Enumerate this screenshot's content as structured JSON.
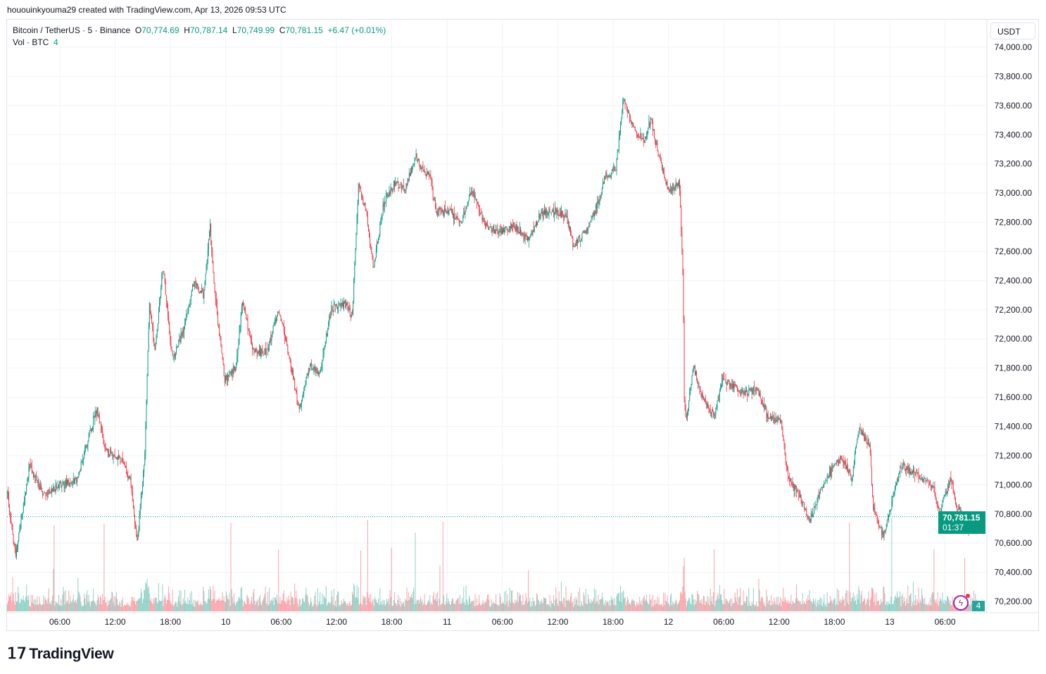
{
  "credit": "hououinkyouma29 created with TradingView.com, Apr 13, 2026 09:53 UTC",
  "legend": {
    "symbol": "Bitcoin / TetherUS · 5 · Binance",
    "o_label": "O",
    "o": "70,774.69",
    "h_label": "H",
    "h": "70,787.14",
    "l_label": "L",
    "l": "70,749.99",
    "c_label": "C",
    "c": "70,781.15",
    "change": "+6.47 (+0.01%)",
    "vol_label": "Vol · BTC",
    "vol": "4"
  },
  "currency": "USDT",
  "last_price": "70,781.15",
  "countdown": "01:37",
  "last_volume": "4",
  "logo": "TradingView",
  "colors": {
    "up": "#089981",
    "down": "#F23645"
  },
  "chart_data": {
    "type": "candlestick",
    "interval": "5m",
    "ylim": [
      70100,
      74100
    ],
    "y_ticks": [
      "74,000.00",
      "73,800.00",
      "73,600.00",
      "73,400.00",
      "73,200.00",
      "73,000.00",
      "72,800.00",
      "72,600.00",
      "72,400.00",
      "72,200.00",
      "72,000.00",
      "71,800.00",
      "71,600.00",
      "71,400.00",
      "71,200.00",
      "71,000.00",
      "70,800.00",
      "70,600.00",
      "70,400.00",
      "70,200.00"
    ],
    "x_range_hours_from_apr9": [
      0.3,
      105.8
    ],
    "x_ticks": [
      {
        "h": 6,
        "label": "06:00"
      },
      {
        "h": 12,
        "label": "12:00"
      },
      {
        "h": 18,
        "label": "18:00"
      },
      {
        "h": 24,
        "label": "10"
      },
      {
        "h": 30,
        "label": "06:00"
      },
      {
        "h": 36,
        "label": "12:00"
      },
      {
        "h": 42,
        "label": "18:00"
      },
      {
        "h": 48,
        "label": "11"
      },
      {
        "h": 54,
        "label": "06:00"
      },
      {
        "h": 60,
        "label": "12:00"
      },
      {
        "h": 66,
        "label": "18:00"
      },
      {
        "h": 72,
        "label": "12"
      },
      {
        "h": 78,
        "label": "06:00"
      },
      {
        "h": 84,
        "label": "12:00"
      },
      {
        "h": 90,
        "label": "18:00"
      },
      {
        "h": 96,
        "label": "13"
      },
      {
        "h": 102,
        "label": "06:00"
      }
    ],
    "price_path": [
      [
        0.3,
        70943
      ],
      [
        1.2,
        70509
      ],
      [
        2.7,
        71136
      ],
      [
        4.1,
        70943
      ],
      [
        6.0,
        70992
      ],
      [
        7.9,
        71040
      ],
      [
        8.7,
        71233
      ],
      [
        10.0,
        71523
      ],
      [
        11.0,
        71233
      ],
      [
        12.5,
        71185
      ],
      [
        13.6,
        71040
      ],
      [
        14.4,
        70605
      ],
      [
        15.2,
        71185
      ],
      [
        15.7,
        72247
      ],
      [
        16.3,
        71909
      ],
      [
        17.2,
        72489
      ],
      [
        18.2,
        71861
      ],
      [
        19.4,
        72054
      ],
      [
        20.5,
        72392
      ],
      [
        21.6,
        72295
      ],
      [
        22.3,
        72778
      ],
      [
        22.8,
        72295
      ],
      [
        23.9,
        71716
      ],
      [
        25.1,
        71812
      ],
      [
        25.8,
        72247
      ],
      [
        27.0,
        71909
      ],
      [
        28.5,
        71909
      ],
      [
        29.7,
        72199
      ],
      [
        30.8,
        71909
      ],
      [
        31.9,
        71523
      ],
      [
        33.1,
        71812
      ],
      [
        34.2,
        71764
      ],
      [
        35.4,
        72199
      ],
      [
        36.9,
        72247
      ],
      [
        37.7,
        72150
      ],
      [
        38.4,
        73068
      ],
      [
        39.2,
        72875
      ],
      [
        40.0,
        72489
      ],
      [
        41.1,
        72923
      ],
      [
        42.3,
        73068
      ],
      [
        43.4,
        73020
      ],
      [
        44.6,
        73261
      ],
      [
        45.3,
        73165
      ],
      [
        46.1,
        73116
      ],
      [
        46.8,
        72875
      ],
      [
        48.4,
        72875
      ],
      [
        49.5,
        72778
      ],
      [
        50.6,
        73020
      ],
      [
        52.2,
        72778
      ],
      [
        53.7,
        72730
      ],
      [
        55.2,
        72778
      ],
      [
        56.8,
        72682
      ],
      [
        58.3,
        72875
      ],
      [
        59.8,
        72875
      ],
      [
        61.0,
        72827
      ],
      [
        61.7,
        72633
      ],
      [
        62.9,
        72730
      ],
      [
        64.0,
        72875
      ],
      [
        65.2,
        73116
      ],
      [
        66.3,
        73165
      ],
      [
        67.1,
        73647
      ],
      [
        68.2,
        73454
      ],
      [
        69.4,
        73358
      ],
      [
        70.1,
        73503
      ],
      [
        71.3,
        73165
      ],
      [
        72.0,
        73020
      ],
      [
        73.2,
        73068
      ],
      [
        73.6,
        72392
      ],
      [
        73.7,
        71619
      ],
      [
        73.9,
        71426
      ],
      [
        74.7,
        71812
      ],
      [
        75.8,
        71571
      ],
      [
        77.0,
        71474
      ],
      [
        77.8,
        71716
      ],
      [
        79.3,
        71668
      ],
      [
        80.4,
        71619
      ],
      [
        81.6,
        71668
      ],
      [
        82.7,
        71474
      ],
      [
        84.2,
        71426
      ],
      [
        85.0,
        71040
      ],
      [
        86.1,
        70943
      ],
      [
        87.3,
        70750
      ],
      [
        88.4,
        70943
      ],
      [
        89.6,
        71088
      ],
      [
        90.7,
        71185
      ],
      [
        91.9,
        71040
      ],
      [
        92.6,
        71378
      ],
      [
        93.8,
        71281
      ],
      [
        94.2,
        70847
      ],
      [
        95.3,
        70654
      ],
      [
        96.5,
        70943
      ],
      [
        97.2,
        71136
      ],
      [
        98.4,
        71088
      ],
      [
        99.5,
        71040
      ],
      [
        100.7,
        70992
      ],
      [
        101.4,
        70798
      ],
      [
        102.6,
        71040
      ],
      [
        103.3,
        70847
      ],
      [
        104.5,
        70702
      ],
      [
        105.8,
        70781.15
      ]
    ],
    "last_close": 70781.15
  }
}
